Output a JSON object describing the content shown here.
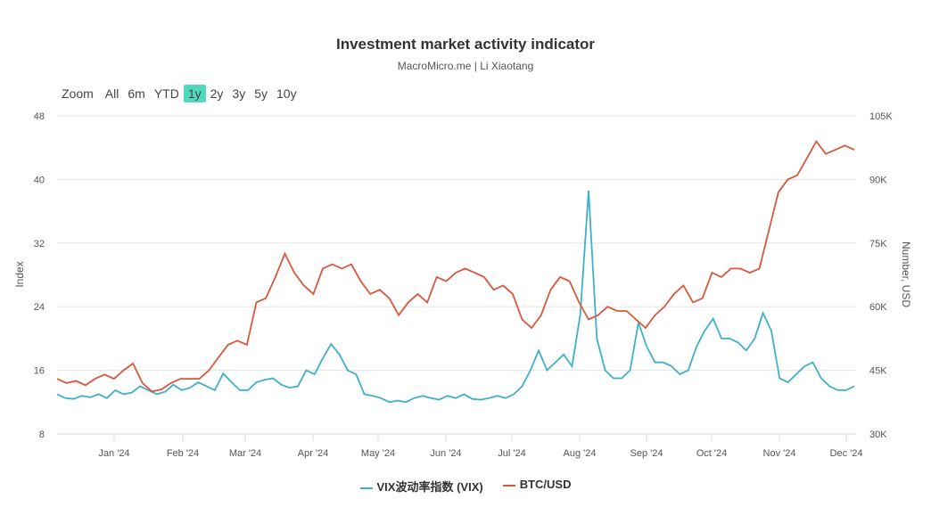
{
  "chart_data": {
    "type": "line",
    "title": "Investment market activity indicator",
    "subtitle": "MacroMicro.me | Li Xiaotang",
    "range_selector": {
      "label": "Zoom",
      "buttons": [
        "All",
        "6m",
        "YTD",
        "1y",
        "2y",
        "3y",
        "5y",
        "10y"
      ],
      "selected": "1y"
    },
    "x_ticks": [
      "Jan '24",
      "Feb '24",
      "Mar '24",
      "Apr '24",
      "May '24",
      "Jun '24",
      "Jul '24",
      "Aug '24",
      "Sep '24",
      "Oct '24",
      "Nov '24",
      "Dec '24"
    ],
    "x_range": [
      "2023-12-05",
      "2024-12-09"
    ],
    "y_left": {
      "label": "Index",
      "ticks": [
        "8",
        "16",
        "24",
        "32",
        "40",
        "48"
      ],
      "range": [
        8,
        48
      ]
    },
    "y_right": {
      "label": "Number, USD",
      "ticks": [
        "30K",
        "45K",
        "60K",
        "75K",
        "90K",
        "105K"
      ],
      "range": [
        30000,
        105000
      ]
    },
    "grid": true,
    "legend": "bottom",
    "series": [
      {
        "name": "VIX波动率指数 (VIX)",
        "color": "#3fb0c9",
        "axis": "left",
        "values": [
          13,
          12.5,
          12.4,
          12.8,
          12.6,
          13,
          12.5,
          13.5,
          13,
          13.2,
          14,
          13.5,
          13,
          13.3,
          14.2,
          13.5,
          13.8,
          14.5,
          14,
          13.5,
          15.6,
          14.5,
          13.5,
          13.5,
          14.5,
          14.8,
          15,
          14.2,
          13.8,
          14,
          16,
          15.5,
          17.5,
          19.3,
          18,
          16,
          15.5,
          13,
          12.8,
          12.5,
          12,
          12.2,
          12,
          12.5,
          12.8,
          12.5,
          12.3,
          12.8,
          12.5,
          13,
          12.4,
          12.3,
          12.5,
          12.8,
          12.5,
          13,
          14,
          16,
          18.5,
          16,
          17,
          18,
          16.5,
          23,
          38.6,
          20,
          16,
          15,
          15,
          16,
          22,
          19,
          17,
          17,
          16.5,
          15.5,
          16,
          19,
          21,
          22.5,
          20,
          20,
          19.5,
          18.5,
          20,
          23.2,
          21,
          15,
          14.5,
          15.5,
          16.5,
          17,
          15,
          14,
          13.5,
          13.5,
          14
        ]
      },
      {
        "name": "BTC/USD",
        "color": "#d9573b",
        "axis": "right",
        "values": [
          43000,
          42000,
          42500,
          41500,
          43000,
          44000,
          43000,
          45000,
          46600,
          42000,
          40000,
          40500,
          42000,
          43000,
          43000,
          43000,
          45000,
          48000,
          51000,
          52000,
          51000,
          61000,
          62000,
          67000,
          72500,
          68000,
          65000,
          63000,
          69000,
          70000,
          69000,
          70000,
          66000,
          63000,
          64000,
          62000,
          58000,
          61000,
          63000,
          61000,
          67000,
          66000,
          68000,
          69000,
          68000,
          67000,
          64000,
          65000,
          63000,
          57000,
          55000,
          58000,
          64000,
          67000,
          66000,
          61000,
          57000,
          58000,
          60000,
          59000,
          59000,
          57000,
          55000,
          58000,
          60000,
          63000,
          65000,
          61000,
          62000,
          68000,
          67000,
          69000,
          69000,
          68000,
          69000,
          78000,
          87000,
          90000,
          91000,
          95000,
          99000,
          96000,
          97000,
          98000,
          97000
        ]
      }
    ]
  }
}
